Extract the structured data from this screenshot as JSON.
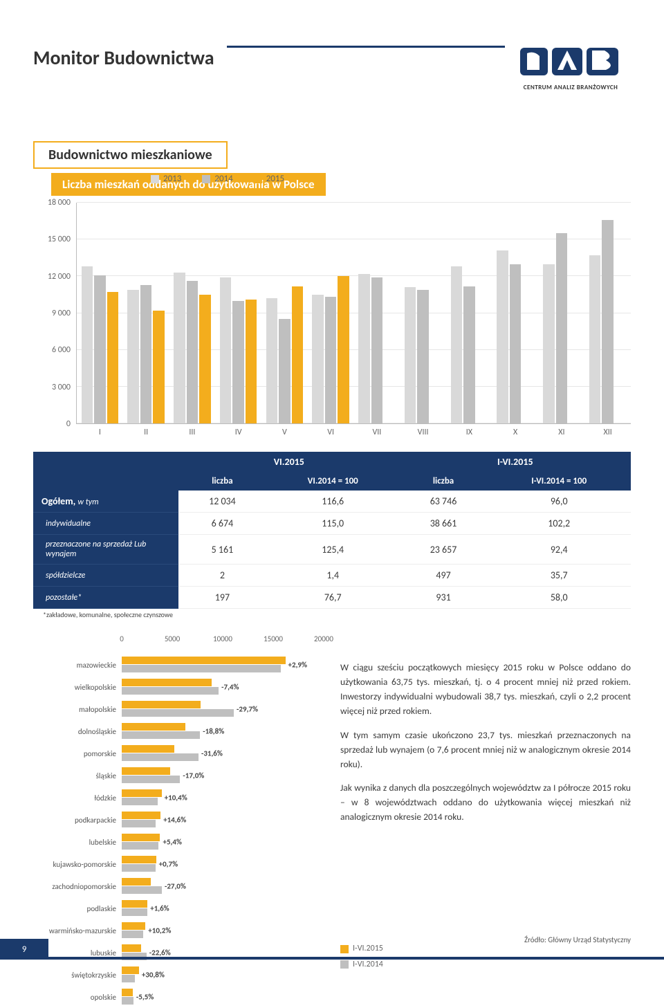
{
  "page": {
    "title": "Monitor Budownictwa",
    "logo_sub": "CENTRUM ANALIZ BRANŻOWYCH",
    "number": "9",
    "source": "Źródło: Główny Urząd Statystyczny"
  },
  "colors": {
    "brand_navy": "#1b3a6b",
    "accent": "#f3ad1d",
    "series_2013": "#d9d9d9",
    "series_2014": "#bfbfbf",
    "series_2015": "#f3ad1d",
    "hbar_2015": "#f3ad1d",
    "hbar_2014": "#bfbfbf"
  },
  "section": {
    "heading": "Budownictwo mieszkaniowe",
    "subheading": "Liczba mieszkań oddanych do użytkowania w Polsce"
  },
  "grouped_chart": {
    "type": "bar",
    "ylim": [
      0,
      18000
    ],
    "ytick_step": 3000,
    "yticks": [
      "0",
      "3 000",
      "6 000",
      "9 000",
      "12 000",
      "15 000",
      "18 000"
    ],
    "legend": [
      "2013",
      "2014",
      "2015"
    ],
    "categories": [
      "I",
      "II",
      "III",
      "IV",
      "V",
      "VI",
      "VII",
      "VIII",
      "IX",
      "X",
      "XI",
      "XII"
    ],
    "series": {
      "2013": [
        12800,
        10900,
        12300,
        11900,
        10200,
        10500,
        12200,
        11100,
        12800,
        14100,
        13000,
        13700
      ],
      "2014": [
        12100,
        11300,
        11600,
        10000,
        8500,
        10300,
        11900,
        10900,
        11200,
        13000,
        15500,
        16600
      ],
      "2015": [
        10700,
        9200,
        10500,
        10100,
        11200,
        12000,
        null,
        null,
        null,
        null,
        null,
        null
      ]
    }
  },
  "table": {
    "header_top": {
      "left": "VI.2015",
      "right": "I-VI.2015"
    },
    "header_sub": [
      "liczba",
      "VI.2014 = 100",
      "liczba",
      "I-VI.2014 = 100"
    ],
    "rows": [
      {
        "label": "Ogółem,",
        "sublabel": "w tym",
        "main": true,
        "vals": [
          "12 034",
          "116,6",
          "63 746",
          "96,0"
        ]
      },
      {
        "label": "indywidualne",
        "vals": [
          "6 674",
          "115,0",
          "38 661",
          "102,2"
        ]
      },
      {
        "label": "przeznaczone na sprzedaż Lub wynajem",
        "vals": [
          "5 161",
          "125,4",
          "23 657",
          "92,4"
        ]
      },
      {
        "label": "spółdzielcze",
        "vals": [
          "2",
          "1,4",
          "497",
          "35,7"
        ]
      },
      {
        "label": "pozostałe*",
        "vals": [
          "197",
          "76,7",
          "931",
          "58,0"
        ]
      }
    ],
    "footnote": "*zakładowe, komunalne, społeczne czynszowe"
  },
  "hbar": {
    "type": "bar",
    "xmax": 20000,
    "xticks": [
      0,
      5000,
      10000,
      15000,
      20000
    ],
    "legend": [
      "I-VI.2015",
      "I-VI.2014"
    ],
    "rows": [
      {
        "region": "mazowieckie",
        "v2015": 16200,
        "v2014": 15750,
        "pct": "+2,9%"
      },
      {
        "region": "wielkopolskie",
        "v2015": 8900,
        "v2014": 9600,
        "pct": "-7,4%"
      },
      {
        "region": "małopolskie",
        "v2015": 7800,
        "v2014": 11100,
        "pct": "-29,7%"
      },
      {
        "region": "dolnośląskie",
        "v2015": 6300,
        "v2014": 7760,
        "pct": "-18,8%"
      },
      {
        "region": "pomorskie",
        "v2015": 5200,
        "v2014": 7600,
        "pct": "-31,6%"
      },
      {
        "region": "śląskie",
        "v2015": 4800,
        "v2014": 5780,
        "pct": "-17,0%"
      },
      {
        "region": "łódzkie",
        "v2015": 3950,
        "v2014": 3580,
        "pct": "+10,4%"
      },
      {
        "region": "podkarpackie",
        "v2015": 3850,
        "v2014": 3360,
        "pct": "+14,6%"
      },
      {
        "region": "lubelskie",
        "v2015": 3800,
        "v2014": 3600,
        "pct": "+5,4%"
      },
      {
        "region": "kujawsko-pomorskie",
        "v2015": 3400,
        "v2014": 3380,
        "pct": "+0,7%"
      },
      {
        "region": "zachodniopomorskie",
        "v2015": 2900,
        "v2014": 3970,
        "pct": "-27,0%"
      },
      {
        "region": "podlaskie",
        "v2015": 2550,
        "v2014": 2510,
        "pct": "+1,6%"
      },
      {
        "region": "warmińsko-mazurskie",
        "v2015": 2350,
        "v2014": 2130,
        "pct": "+10,2%"
      },
      {
        "region": "lubuskie",
        "v2015": 1900,
        "v2014": 2450,
        "pct": "-22,6%"
      },
      {
        "region": "świętokrzyskie",
        "v2015": 1700,
        "v2014": 1300,
        "pct": "+30,8%"
      },
      {
        "region": "opolskie",
        "v2015": 1100,
        "v2014": 1160,
        "pct": "-5,5%"
      }
    ]
  },
  "paragraphs": [
    "W ciągu sześciu początkowych miesięcy 2015 roku w Polsce oddano do użytkowania 63,75 tys. mieszkań, tj. o 4 procent mniej niż przed rokiem. Inwestorzy indywidualni wybudowali 38,7 tys. mieszkań, czyli o 2,2 procent więcej niż przed rokiem.",
    "W tym samym czasie ukończono 23,7 tys. mieszkań przeznaczonych na sprzedaż lub wynajem (o 7,6 procent mniej niż w analogicznym okresie 2014 roku).",
    "Jak wynika z danych dla poszczególnych województw za I półrocze 2015 roku – w 8 województwach oddano do użytkowania więcej mieszkań niż analogicznym okresie 2014 roku."
  ]
}
